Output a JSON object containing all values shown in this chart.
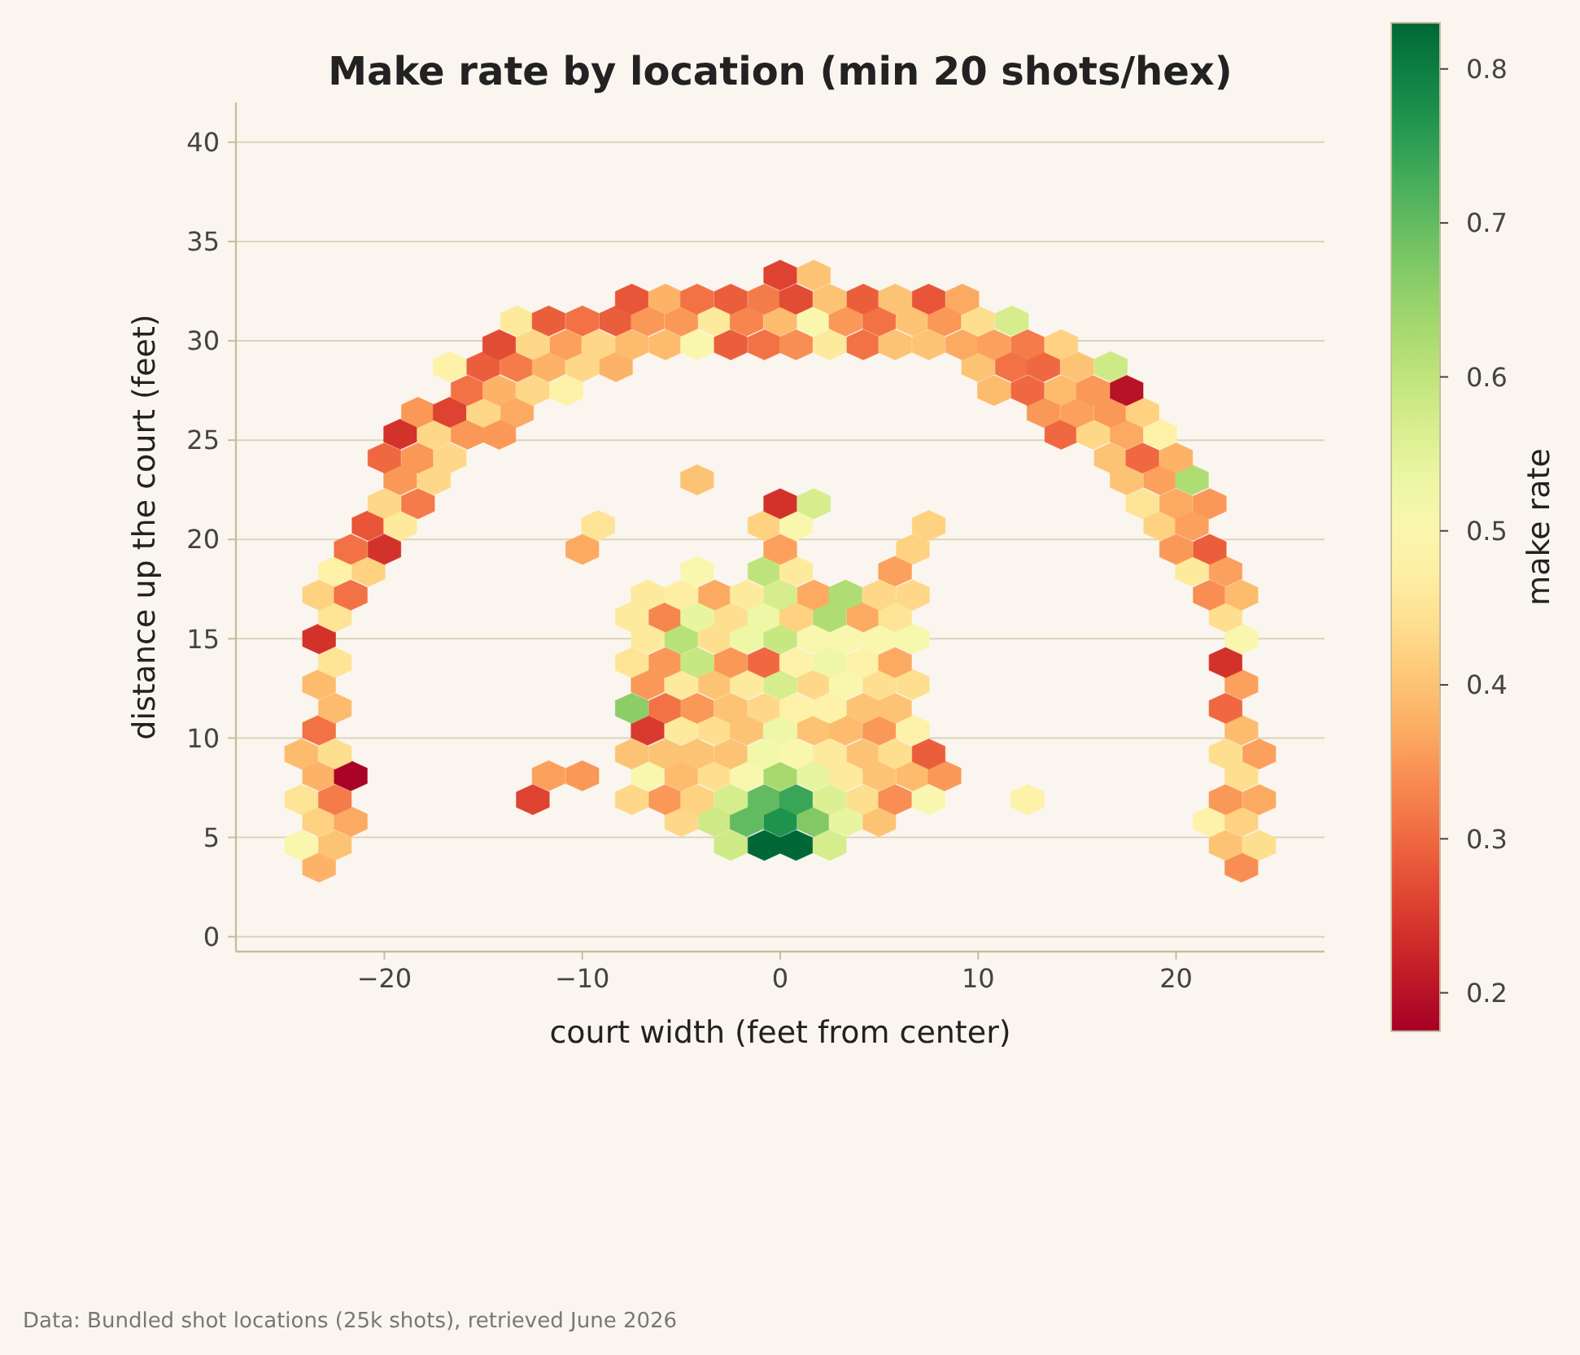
{
  "chart_data": {
    "type": "scatter",
    "title": "Make rate by location (min 20 shots/hex)",
    "xlabel": "court width (feet from center)",
    "ylabel": "distance up the court (feet)",
    "clabel": "make rate",
    "x": [
      -23.3,
      23.3,
      -24.2,
      -22.5,
      -2.5,
      -0.8,
      0.8,
      2.5,
      22.5,
      24.2,
      -23.3,
      -21.7,
      -5,
      -3.3,
      -1.7,
      0,
      1.7,
      3.3,
      5,
      21.7,
      23.3,
      -24.2,
      -22.5,
      -12.5,
      -7.5,
      -5.8,
      -4.2,
      -2.5,
      -0.8,
      0.8,
      2.5,
      4.2,
      5.8,
      7.5,
      12.5,
      22.5,
      24.2,
      -23.3,
      -21.7,
      -11.7,
      -10,
      -6.7,
      -5,
      -3.3,
      -1.7,
      0,
      1.7,
      3.3,
      5,
      6.7,
      8.3,
      23.3,
      -24.2,
      -22.5,
      -7.5,
      -5.8,
      -4.2,
      -2.5,
      -0.8,
      0.8,
      2.5,
      4.2,
      5.8,
      7.5,
      22.5,
      24.2,
      -23.3,
      -6.7,
      -5,
      -3.3,
      -1.7,
      0,
      1.7,
      3.3,
      5,
      6.7,
      23.3,
      -22.5,
      -7.5,
      -5.8,
      -4.2,
      -2.5,
      -0.8,
      0.8,
      2.5,
      4.2,
      5.8,
      22.5,
      -23.3,
      -6.7,
      -5,
      -3.3,
      -1.7,
      0,
      1.7,
      3.3,
      5,
      6.7,
      23.3,
      -22.5,
      -7.5,
      -5.8,
      -4.2,
      -2.5,
      -0.8,
      0.8,
      2.5,
      4.2,
      5.8,
      22.5,
      -23.3,
      -6.7,
      -5,
      -3.3,
      -1.7,
      0,
      1.7,
      3.3,
      5,
      6.7,
      23.3,
      -22.5,
      -7.5,
      -5.8,
      -4.2,
      -2.5,
      -0.8,
      0.8,
      2.5,
      4.2,
      5.8,
      22.5,
      -23.3,
      -21.7,
      -6.7,
      -5,
      -3.3,
      -1.7,
      0,
      1.7,
      3.3,
      5,
      6.7,
      21.7,
      23.3,
      -22.5,
      -20.8,
      -4.2,
      -0.8,
      0.8,
      5.8,
      20.8,
      22.5,
      -21.7,
      -20,
      -10,
      0,
      6.7,
      20,
      21.7,
      -20.8,
      -19.2,
      -9.2,
      -0.8,
      0.8,
      7.5,
      19.2,
      20.8,
      -20,
      -18.3,
      0,
      1.7,
      18.3,
      20,
      21.7,
      -19.2,
      -17.5,
      -4.2,
      17.5,
      19.2,
      20.8,
      -20,
      -18.3,
      -16.7,
      16.7,
      18.3,
      20,
      -19.2,
      -17.5,
      -15.8,
      -14.2,
      14.2,
      15.8,
      17.5,
      19.2,
      -18.3,
      -16.7,
      -15,
      -13.3,
      13.3,
      15,
      16.7,
      18.3,
      -15.8,
      -14.2,
      -12.5,
      -10.8,
      10.8,
      12.5,
      14.2,
      15.8,
      17.5,
      -16.7,
      -15,
      -13.3,
      -11.7,
      -10,
      -8.3,
      10,
      11.7,
      13.3,
      15,
      16.7,
      -14.2,
      -12.5,
      -10.8,
      -9.2,
      -7.5,
      -5.8,
      -4.2,
      -2.5,
      -0.8,
      0.8,
      2.5,
      4.2,
      5.8,
      7.5,
      9.2,
      10.8,
      12.5,
      14.2,
      -13.3,
      -11.7,
      -10,
      -8.3,
      -6.7,
      -5,
      -3.3,
      -1.7,
      0,
      1.7,
      3.3,
      5,
      6.7,
      8.3,
      10,
      11.7,
      -7.5,
      -5.8,
      -4.2,
      -2.5,
      -0.8,
      0.8,
      2.5,
      4.2,
      5.8,
      7.5,
      9.2,
      0,
      1.7
    ],
    "values": [
      3.5,
      3.5,
      4.6,
      4.6,
      4.6,
      4.6,
      4.6,
      4.6,
      4.6,
      4.6,
      5.8,
      5.8,
      5.8,
      5.8,
      5.8,
      5.8,
      5.8,
      5.8,
      5.8,
      5.8,
      5.8,
      6.9,
      6.9,
      6.9,
      6.9,
      6.9,
      6.9,
      6.9,
      6.9,
      6.9,
      6.9,
      6.9,
      6.9,
      6.9,
      6.9,
      6.9,
      6.9,
      8.1,
      8.1,
      8.1,
      8.1,
      8.1,
      8.1,
      8.1,
      8.1,
      8.1,
      8.1,
      8.1,
      8.1,
      8.1,
      8.1,
      8.1,
      9.2,
      9.2,
      9.2,
      9.2,
      9.2,
      9.2,
      9.2,
      9.2,
      9.2,
      9.2,
      9.2,
      9.2,
      9.2,
      9.2,
      10.4,
      10.4,
      10.4,
      10.4,
      10.4,
      10.4,
      10.4,
      10.4,
      10.4,
      10.4,
      10.4,
      11.5,
      11.5,
      11.5,
      11.5,
      11.5,
      11.5,
      11.5,
      11.5,
      11.5,
      11.5,
      11.5,
      12.7,
      12.7,
      12.7,
      12.7,
      12.7,
      12.7,
      12.7,
      12.7,
      12.7,
      12.7,
      12.7,
      13.8,
      13.8,
      13.8,
      13.8,
      13.8,
      13.8,
      13.8,
      13.8,
      13.8,
      13.8,
      13.8,
      15,
      15,
      15,
      15,
      15,
      15,
      15,
      15,
      15,
      15,
      15,
      16.1,
      16.1,
      16.1,
      16.1,
      16.1,
      16.1,
      16.1,
      16.1,
      16.1,
      16.1,
      16.1,
      17.2,
      17.2,
      17.2,
      17.2,
      17.2,
      17.2,
      17.2,
      17.2,
      17.2,
      17.2,
      17.2,
      17.2,
      17.2,
      18.4,
      18.4,
      18.4,
      18.4,
      18.4,
      18.4,
      18.4,
      18.4,
      19.5,
      19.5,
      19.5,
      19.5,
      19.5,
      19.5,
      19.5,
      20.7,
      20.7,
      20.7,
      20.7,
      20.7,
      20.7,
      20.7,
      20.7,
      21.8,
      21.8,
      21.8,
      21.8,
      21.8,
      21.8,
      21.8,
      23,
      23,
      23,
      23,
      23,
      23,
      24.1,
      24.1,
      24.1,
      24.1,
      24.1,
      24.1,
      25.3,
      25.3,
      25.3,
      25.3,
      25.3,
      25.3,
      25.3,
      25.3,
      26.4,
      26.4,
      26.4,
      26.4,
      26.4,
      26.4,
      26.4,
      26.4,
      27.5,
      27.5,
      27.5,
      27.5,
      27.5,
      27.5,
      27.5,
      27.5,
      27.5,
      28.7,
      28.7,
      28.7,
      28.7,
      28.7,
      28.7,
      28.7,
      28.7,
      28.7,
      28.7,
      28.7,
      29.8,
      29.8,
      29.8,
      29.8,
      29.8,
      29.8,
      29.8,
      29.8,
      29.8,
      29.8,
      29.8,
      29.8,
      29.8,
      29.8,
      29.8,
      29.8,
      29.8,
      29.8,
      31,
      31,
      31,
      31,
      31,
      31,
      31,
      31,
      31,
      31,
      31,
      31,
      31,
      31,
      31,
      31,
      32.1,
      32.1,
      32.1,
      32.1,
      32.1,
      32.1,
      32.1,
      32.1,
      32.1,
      32.1,
      32.1,
      33.3,
      33.3
    ],
    "cvalues": [
      0.38,
      0.34,
      0.5,
      0.4,
      0.58,
      0.83,
      0.83,
      0.57,
      0.4,
      0.44,
      0.42,
      0.37,
      0.43,
      0.58,
      0.7,
      0.77,
      0.67,
      0.54,
      0.4,
      0.48,
      0.42,
      0.45,
      0.32,
      0.26,
      0.43,
      0.35,
      0.42,
      0.57,
      0.7,
      0.74,
      0.56,
      0.44,
      0.34,
      0.5,
      0.48,
      0.35,
      0.37,
      0.38,
      0.18,
      0.36,
      0.35,
      0.5,
      0.39,
      0.44,
      0.5,
      0.63,
      0.54,
      0.46,
      0.4,
      0.39,
      0.35,
      0.44,
      0.39,
      0.44,
      0.4,
      0.4,
      0.4,
      0.4,
      0.52,
      0.5,
      0.46,
      0.4,
      0.44,
      0.29,
      0.44,
      0.36,
      0.31,
      0.25,
      0.46,
      0.44,
      0.4,
      0.53,
      0.4,
      0.39,
      0.35,
      0.48,
      0.39,
      0.39,
      0.66,
      0.31,
      0.35,
      0.4,
      0.43,
      0.48,
      0.48,
      0.4,
      0.4,
      0.3,
      0.39,
      0.35,
      0.46,
      0.4,
      0.46,
      0.57,
      0.43,
      0.5,
      0.44,
      0.44,
      0.36,
      0.45,
      0.45,
      0.35,
      0.59,
      0.35,
      0.3,
      0.48,
      0.53,
      0.48,
      0.37,
      0.24,
      0.24,
      0.46,
      0.61,
      0.44,
      0.53,
      0.59,
      0.5,
      0.5,
      0.5,
      0.51,
      0.5,
      0.45,
      0.46,
      0.33,
      0.54,
      0.44,
      0.53,
      0.42,
      0.62,
      0.37,
      0.45,
      0.44,
      0.42,
      0.31,
      0.46,
      0.47,
      0.37,
      0.46,
      0.57,
      0.37,
      0.62,
      0.43,
      0.43,
      0.34,
      0.39,
      0.48,
      0.42,
      0.5,
      0.6,
      0.46,
      0.36,
      0.46,
      0.36,
      0.31,
      0.24,
      0.37,
      0.36,
      0.42,
      0.35,
      0.29,
      0.28,
      0.46,
      0.45,
      0.42,
      0.5,
      0.42,
      0.42,
      0.36,
      0.43,
      0.32,
      0.24,
      0.57,
      0.45,
      0.37,
      0.35,
      0.35,
      0.43,
      0.4,
      0.4,
      0.36,
      0.62,
      0.3,
      0.35,
      0.43,
      0.4,
      0.3,
      0.38,
      0.24,
      0.43,
      0.35,
      0.35,
      0.3,
      0.43,
      0.37,
      0.48,
      0.35,
      0.26,
      0.43,
      0.37,
      0.35,
      0.36,
      0.35,
      0.42,
      0.31,
      0.38,
      0.43,
      0.48,
      0.39,
      0.3,
      0.39,
      0.35,
      0.2,
      0.48,
      0.29,
      0.32,
      0.38,
      0.43,
      0.38,
      0.4,
      0.31,
      0.3,
      0.4,
      0.58,
      0.27,
      0.43,
      0.36,
      0.43,
      0.39,
      0.39,
      0.5,
      0.29,
      0.31,
      0.34,
      0.46,
      0.31,
      0.4,
      0.4,
      0.37,
      0.36,
      0.32,
      0.42,
      0.46,
      0.29,
      0.31,
      0.29,
      0.35,
      0.35,
      0.46,
      0.33,
      0.39,
      0.5,
      0.35,
      0.31,
      0.4,
      0.35,
      0.44,
      0.57,
      0.28,
      0.38,
      0.31,
      0.29,
      0.32,
      0.27,
      0.4,
      0.29,
      0.4,
      0.28,
      0.37,
      0.26,
      0.4
    ],
    "xlim": [
      -27.5,
      27.5
    ],
    "ylim": [
      -0.75,
      42
    ],
    "xticks": [
      {
        "value": -20,
        "label": "−20"
      },
      {
        "value": -10,
        "label": "−10"
      },
      0,
      10,
      20
    ],
    "yticks": [
      0,
      5,
      10,
      15,
      20,
      25,
      30,
      35,
      40
    ],
    "clim": [
      0.175,
      0.83
    ],
    "cticks": [
      0.2,
      0.3,
      0.4,
      0.5,
      0.6,
      0.7,
      0.8
    ],
    "grid": "y",
    "annotations": [
      "Data: Bundled shot locations (25k shots), retrieved June 2026"
    ]
  }
}
